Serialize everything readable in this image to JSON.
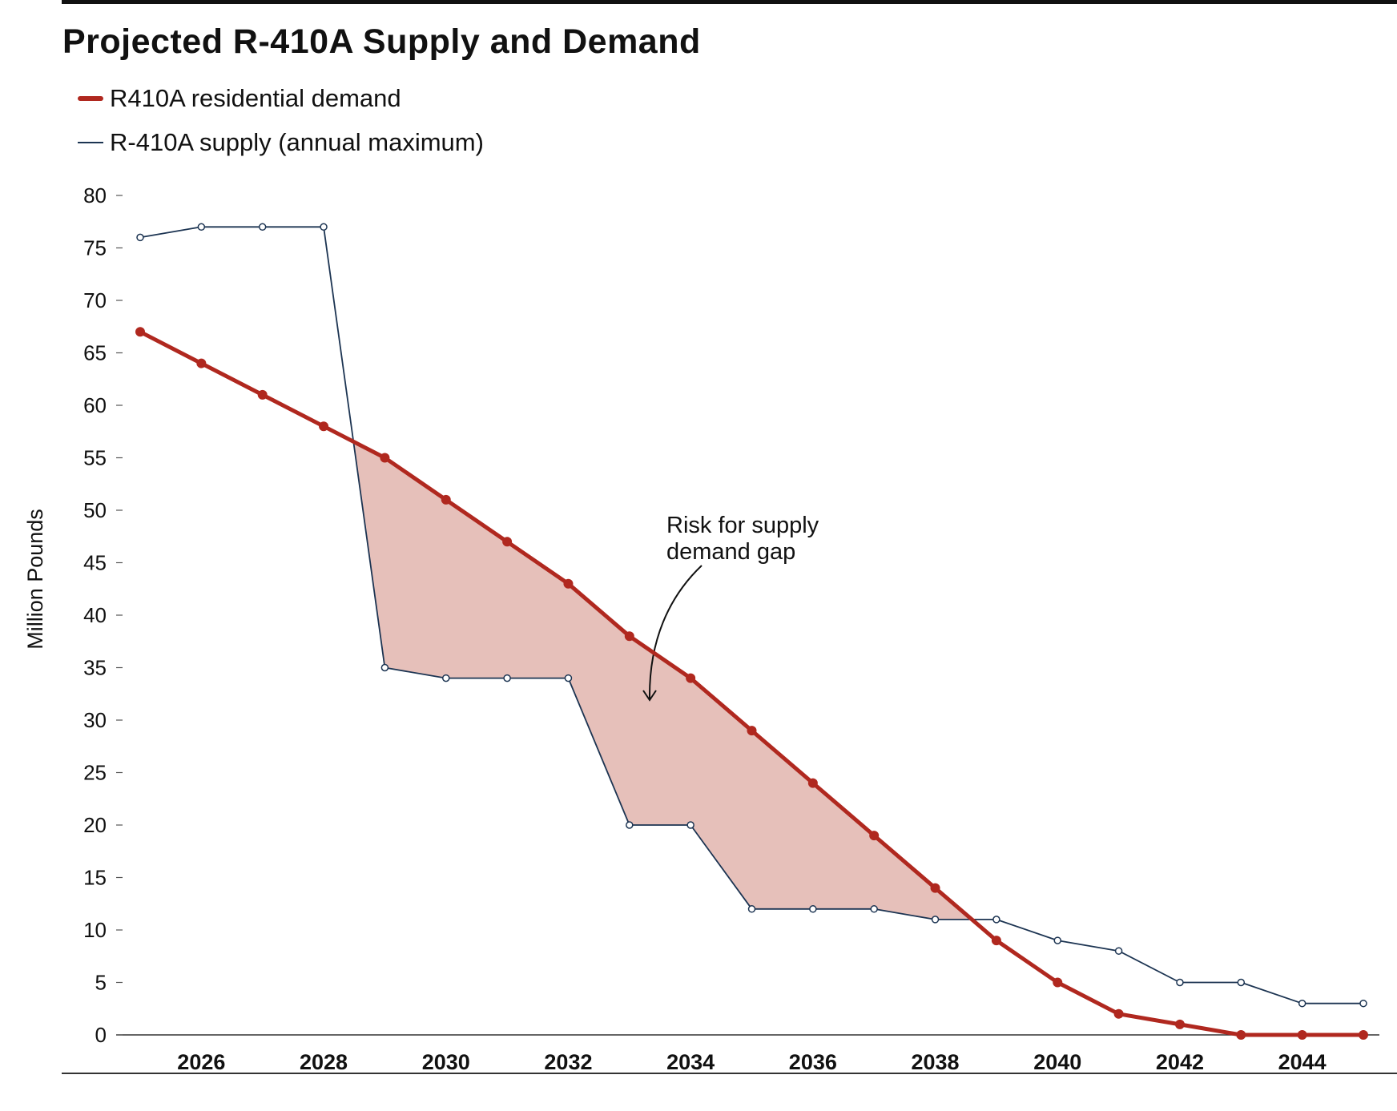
{
  "title": "Projected R-410A Supply and Demand",
  "chart_data": {
    "type": "line",
    "title": "Projected R-410A Supply and Demand",
    "xlabel": "",
    "ylabel": "Million Pounds",
    "x": [
      2025,
      2026,
      2027,
      2028,
      2029,
      2030,
      2031,
      2032,
      2033,
      2034,
      2035,
      2036,
      2037,
      2038,
      2039,
      2040,
      2041,
      2042,
      2043,
      2044,
      2045
    ],
    "series": [
      {
        "name": "R410A residential demand",
        "color": "#b0281f",
        "values": [
          67,
          64,
          61,
          58,
          55,
          51,
          47,
          43,
          38,
          34,
          29,
          24,
          19,
          14,
          9,
          5,
          2,
          1,
          0,
          0,
          0
        ]
      },
      {
        "name": "R-410A supply (annual maximum)",
        "color": "#1c3452",
        "values": [
          76,
          77,
          77,
          77,
          35,
          34,
          34,
          34,
          20,
          20,
          12,
          12,
          12,
          11,
          11,
          9,
          8,
          5,
          5,
          3,
          3
        ]
      }
    ],
    "xticks": [
      "2026",
      "2028",
      "2030",
      "2032",
      "2034",
      "2036",
      "2038",
      "2040",
      "2042",
      "2044"
    ],
    "yticks": [
      "0",
      "5",
      "10",
      "15",
      "20",
      "25",
      "30",
      "35",
      "40",
      "45",
      "50",
      "55",
      "60",
      "65",
      "70",
      "75",
      "80"
    ],
    "ylim": [
      0,
      80
    ],
    "xlim": [
      2025,
      2045
    ],
    "grid": false,
    "legend_position": "top-left",
    "gap_fill_color": "#e6c0ba",
    "annotation": {
      "lines": [
        "Risk for supply",
        "demand gap"
      ]
    }
  }
}
